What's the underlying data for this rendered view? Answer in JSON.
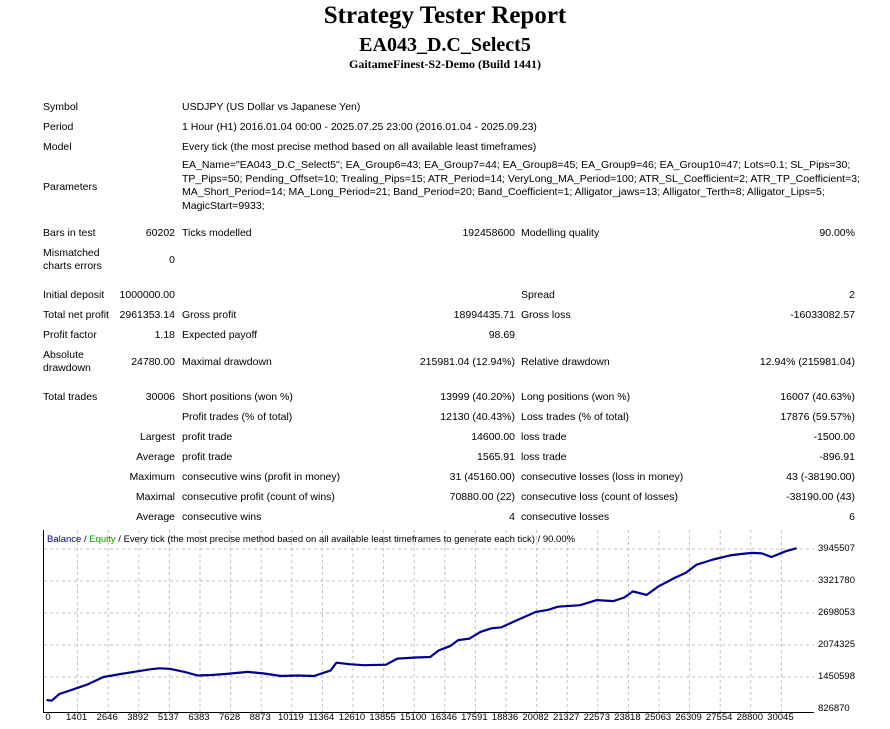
{
  "header": {
    "title": "Strategy Tester Report",
    "expert": "EA043_D.C_Select5",
    "server": "GaitameFinest-S2-Demo (Build 1441)"
  },
  "info": {
    "symbol_label": "Symbol",
    "symbol": "USDJPY (US Dollar vs Japanese Yen)",
    "period_label": "Period",
    "period": "1 Hour (H1) 2016.01.04 00:00 - 2025.07.25 23:00 (2016.01.04 - 2025.09.23)",
    "model_label": "Model",
    "model": "Every tick (the most precise method based on all available least timeframes)",
    "parameters_label": "Parameters",
    "parameters": "EA_Name=\"EA043_D.C_Select5\"; EA_Group6=43; EA_Group7=44; EA_Group8=45; EA_Group9=46; EA_Group10=47; Lots=0.1; SL_Pips=30; TP_Pips=50; Pending_Offset=10; Trealing_Pips=15; ATR_Period=14; VeryLong_MA_Period=100; ATR_SL_Coefficient=2; ATR_TP_Coefficient=3; MA_Short_Period=14; MA_Long_Period=21; Band_Period=20; Band_Coefficient=1; Alligator_jaws=13; Alligator_Terth=8; Alligator_Lips=5; MagicStart=9933;"
  },
  "stats": {
    "bars_label": "Bars in test",
    "bars": "60202",
    "ticks_label": "Ticks modelled",
    "ticks": "192458600",
    "quality_label": "Modelling quality",
    "quality": "90.00%",
    "mismatch_label": "Mismatched charts errors",
    "mismatch": "0",
    "deposit_label": "Initial deposit",
    "deposit": "1000000.00",
    "spread_label": "Spread",
    "spread": "2",
    "net_label": "Total net profit",
    "net": "2961353.14",
    "gross_profit_label": "Gross profit",
    "gross_profit": "18994435.71",
    "gross_loss_label": "Gross loss",
    "gross_loss": "-16033082.57",
    "pf_label": "Profit factor",
    "pf": "1.18",
    "payoff_label": "Expected payoff",
    "payoff": "98.69",
    "abs_dd_label": "Absolute drawdown",
    "abs_dd": "24780.00",
    "max_dd_label": "Maximal drawdown",
    "max_dd": "215981.04 (12.94%)",
    "rel_dd_label": "Relative drawdown",
    "rel_dd": "12.94% (215981.04)",
    "trades_label": "Total trades",
    "trades": "30006",
    "short_label": "Short positions (won %)",
    "short": "13999 (40.20%)",
    "long_label": "Long positions (won %)",
    "long": "16007 (40.63%)",
    "ptrades_label": "Profit trades (% of total)",
    "ptrades": "12130 (40.43%)",
    "ltrades_label": "Loss trades (% of total)",
    "ltrades": "17876 (59.57%)",
    "largest_label": "Largest",
    "lp_label": "profit trade",
    "lp": "14600.00",
    "ll_label": "loss trade",
    "ll": "-1500.00",
    "average_label": "Average",
    "ap_label": "profit trade",
    "ap": "1565.91",
    "al_label": "loss trade",
    "al": "-896.91",
    "maximum_label": "Maximum",
    "mcw_label": "consecutive wins (profit in money)",
    "mcw": "31 (45160.00)",
    "mcl_label": "consecutive losses (loss in money)",
    "mcl": "43 (-38190.00)",
    "maximal_label": "Maximal",
    "mcp_label": "consecutive profit (count of wins)",
    "mcp": "70880.00 (22)",
    "mclo_label": "consecutive loss (count of losses)",
    "mclo": "-38190.00 (43)",
    "average2_label": "Average",
    "acw_label": "consecutive wins",
    "acw": "4",
    "acl_label": "consecutive losses",
    "acl": "6"
  },
  "chart": {
    "legend_balance": "Balance",
    "legend_sep1": " / ",
    "legend_equity": "Equity",
    "legend_rest": " / Every tick (the most precise method based on all available least timeframes to generate each tick) / 90.00%",
    "colors": {
      "balance": "#00008b",
      "equity": "#00a000",
      "grid": "#c0c0c0"
    }
  },
  "chart_data": {
    "type": "line",
    "ylim": [
      826870,
      3945507
    ],
    "xlim": [
      0,
      30600
    ],
    "yticks": [
      "3945507",
      "3321780",
      "2698053",
      "2074325",
      "1450598",
      "826870"
    ],
    "xticks": [
      "0",
      "1401",
      "2646",
      "3892",
      "5137",
      "6383",
      "7628",
      "8873",
      "10119",
      "11364",
      "12610",
      "13855",
      "15100",
      "16346",
      "17591",
      "18836",
      "20082",
      "21327",
      "22573",
      "23818",
      "25063",
      "26309",
      "27554",
      "28800",
      "30045"
    ],
    "grid": true,
    "series": [
      {
        "name": "Balance",
        "x": [
          0,
          200,
          500,
          1000,
          1620,
          2300,
          3000,
          3650,
          4200,
          4560,
          5000,
          5600,
          6140,
          6700,
          7260,
          8170,
          8800,
          9520,
          10200,
          10870,
          11550,
          11780,
          12300,
          12900,
          13800,
          14260,
          15000,
          15600,
          15950,
          16400,
          16740,
          17200,
          17640,
          18090,
          18500,
          19000,
          19900,
          20400,
          20800,
          21700,
          22380,
          23060,
          23500,
          23850,
          24410,
          24870,
          25540,
          26000,
          26440,
          27120,
          27800,
          28300,
          28700,
          29100,
          29490,
          30060,
          30500
        ],
        "y": [
          1000000,
          990000,
          1120000,
          1200000,
          1300000,
          1450000,
          1510000,
          1560000,
          1600000,
          1620000,
          1610000,
          1550000,
          1480000,
          1490000,
          1510000,
          1550000,
          1520000,
          1470000,
          1480000,
          1470000,
          1580000,
          1730000,
          1700000,
          1680000,
          1690000,
          1810000,
          1830000,
          1840000,
          1970000,
          2050000,
          2170000,
          2200000,
          2330000,
          2400000,
          2420000,
          2530000,
          2720000,
          2760000,
          2820000,
          2850000,
          2950000,
          2930000,
          3000000,
          3120000,
          3050000,
          3210000,
          3380000,
          3480000,
          3640000,
          3740000,
          3820000,
          3850000,
          3870000,
          3860000,
          3790000,
          3900000,
          3960000
        ]
      }
    ]
  }
}
